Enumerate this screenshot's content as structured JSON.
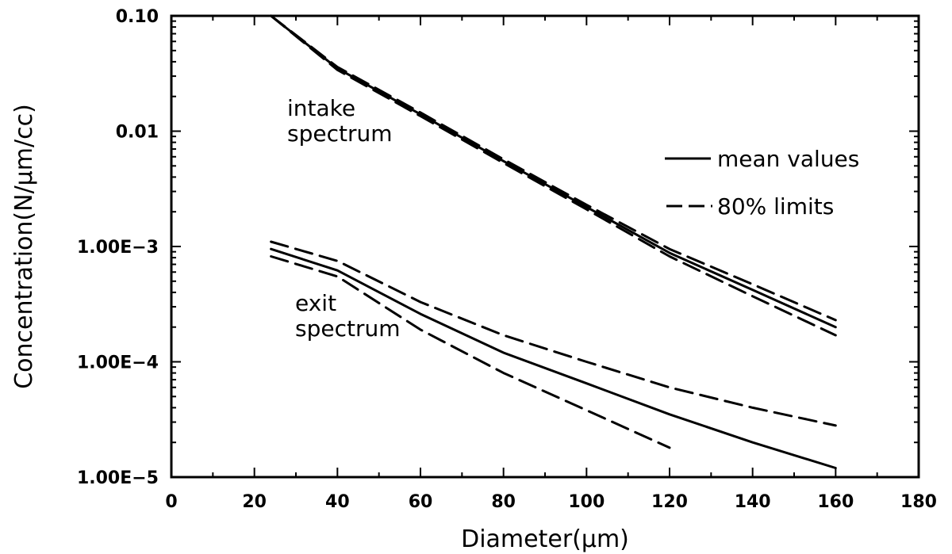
{
  "chart_data": {
    "type": "line",
    "title": "",
    "xlabel": "Diameter(μm)",
    "ylabel": "Concentration(N/μm/cc)",
    "xlim": [
      0,
      180
    ],
    "ylim": [
      1e-05,
      0.1
    ],
    "yscale": "log",
    "x_ticks": [
      0,
      20,
      40,
      60,
      80,
      100,
      120,
      140,
      160,
      180
    ],
    "x_tick_labels": [
      "0",
      "20",
      "40",
      "60",
      "80",
      "100",
      "120",
      "140",
      "160",
      "180"
    ],
    "y_ticks": [
      1e-05,
      0.0001,
      0.001,
      0.01,
      0.1
    ],
    "y_tick_labels": [
      "1.00E−5",
      "1.00E−4",
      "1.00E−3",
      "0.01",
      "0.10"
    ],
    "grid": false,
    "legend": {
      "position": "right",
      "entries": [
        {
          "label": "mean values",
          "style": "solid"
        },
        {
          "label": "80% limits",
          "style": "dashed"
        }
      ]
    },
    "annotations": [
      {
        "lines": [
          "intake",
          "spectrum"
        ]
      },
      {
        "lines": [
          "exit",
          "spectrum"
        ]
      }
    ],
    "series": [
      {
        "group": "intake",
        "style": "solid",
        "x": [
          24,
          40,
          60,
          80,
          100,
          120,
          140,
          160
        ],
        "y": [
          0.1,
          0.035,
          0.014,
          0.0055,
          0.0022,
          0.00088,
          0.00042,
          0.0002
        ]
      },
      {
        "group": "intake",
        "style": "dashed",
        "x": [
          24,
          40,
          60,
          80,
          100,
          120,
          140,
          160
        ],
        "y": [
          0.1,
          0.036,
          0.0145,
          0.0057,
          0.0023,
          0.00095,
          0.00047,
          0.00023
        ]
      },
      {
        "group": "intake",
        "style": "dashed",
        "x": [
          24,
          40,
          60,
          80,
          100,
          120,
          140,
          160
        ],
        "y": [
          0.1,
          0.034,
          0.0135,
          0.0053,
          0.0021,
          0.00082,
          0.00037,
          0.00017
        ]
      },
      {
        "group": "exit",
        "style": "solid",
        "x": [
          24,
          40,
          60,
          80,
          100,
          120,
          140,
          160
        ],
        "y": [
          0.00095,
          0.00062,
          0.00026,
          0.00012,
          6.5e-05,
          3.5e-05,
          2e-05,
          1.2e-05
        ]
      },
      {
        "group": "exit",
        "style": "dashed",
        "x": [
          24,
          40,
          60,
          80,
          100,
          120,
          140,
          160
        ],
        "y": [
          0.0011,
          0.00075,
          0.00033,
          0.00017,
          0.0001,
          6e-05,
          4e-05,
          2.8e-05
        ]
      },
      {
        "group": "exit",
        "style": "dashed",
        "x": [
          24,
          40,
          60,
          80,
          100,
          120
        ],
        "y": [
          0.00082,
          0.00055,
          0.00019,
          8e-05,
          3.8e-05,
          1.8e-05
        ]
      }
    ]
  }
}
